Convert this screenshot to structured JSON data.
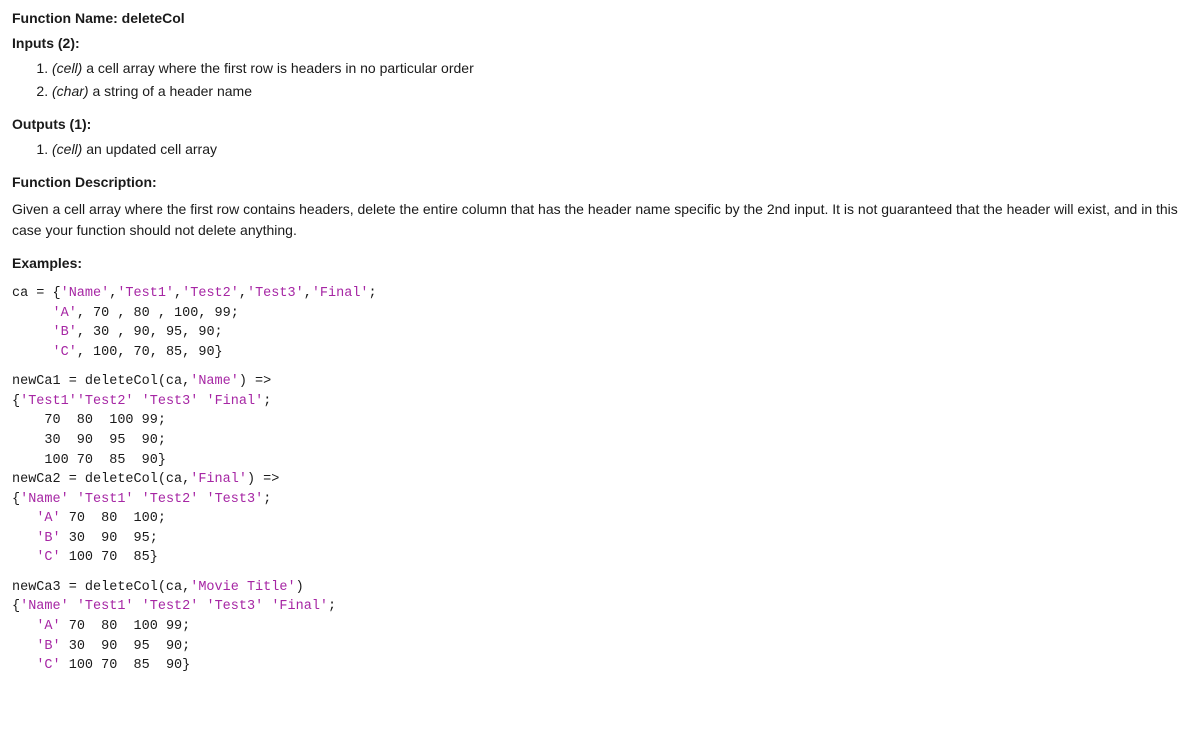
{
  "fnLabel": "Function Name: ",
  "fnName": "deleteCol",
  "inputsLabel": "Inputs (2):",
  "inputs": [
    {
      "type": "(cell)",
      "text": " a cell array where the first row is headers in no particular order"
    },
    {
      "type": "(char)",
      "text": " a string of a header name"
    }
  ],
  "outputsLabel": "Outputs (1):",
  "outputs": [
    {
      "type": "(cell)",
      "text": " an updated cell array"
    }
  ],
  "descLabel": "Function Description:",
  "desc": "Given a cell array where the first row contains headers, delete the entire column that has the header name specific by the 2nd input. It is not guaranteed that the header will exist, and in this case your function should not delete anything.",
  "examplesLabel": "Examples:",
  "code1": {
    "l1a": "ca = {",
    "l1s1": "'Name'",
    "l1b": ",",
    "l1s2": "'Test1'",
    "l1c": ",",
    "l1s3": "'Test2'",
    "l1d": ",",
    "l1s4": "'Test3'",
    "l1e": ",",
    "l1s5": "'Final'",
    "l1f": ";",
    "l2a": "     ",
    "l2s1": "'A'",
    "l2b": ", 70 , 80 , 100, 99;",
    "l3a": "     ",
    "l3s1": "'B'",
    "l3b": ", 30 , 90, 95, 90;",
    "l4a": "     ",
    "l4s1": "'C'",
    "l4b": ", 100, 70, 85, 90}"
  },
  "code2": {
    "l1a": "newCa1 = deleteCol(ca,",
    "l1s1": "'Name'",
    "l1b": ") =>",
    "l2a": "{",
    "l2s1": "'Test1'",
    "l2s2": "'Test2'",
    "l2b": " ",
    "l2s3": "'Test3'",
    "l2c": " ",
    "l2s4": "'Final'",
    "l2d": ";",
    "l3": "    70  80  100 99;",
    "l4": "    30  90  95  90;",
    "l5": "    100 70  85  90}",
    "l6a": "newCa2 = deleteCol(ca,",
    "l6s1": "'Final'",
    "l6b": ") =>",
    "l7a": "{",
    "l7s1": "'Name'",
    "l7b": " ",
    "l7s2": "'Test1'",
    "l7c": " ",
    "l7s3": "'Test2'",
    "l7d": " ",
    "l7s4": "'Test3'",
    "l7e": ";",
    "l8a": "   ",
    "l8s1": "'A'",
    "l8b": " 70  80  100;",
    "l9a": "   ",
    "l9s1": "'B'",
    "l9b": " 30  90  95;",
    "l10a": "   ",
    "l10s1": "'C'",
    "l10b": " 100 70  85}"
  },
  "code3": {
    "l1a": "newCa3 = deleteCol(ca,",
    "l1s1": "'Movie Title'",
    "l1b": ")",
    "l2a": "{",
    "l2s1": "'Name'",
    "l2b": " ",
    "l2s2": "'Test1'",
    "l2c": " ",
    "l2s3": "'Test2'",
    "l2d": " ",
    "l2s4": "'Test3'",
    "l2e": " ",
    "l2s5": "'Final'",
    "l2f": ";",
    "l3a": "   ",
    "l3s1": "'A'",
    "l3b": " 70  80  100 99;",
    "l4a": "   ",
    "l4s1": "'B'",
    "l4b": " 30  90  95  90;",
    "l5a": "   ",
    "l5s1": "'C'",
    "l5b": " 100 70  85  90}"
  },
  "colors": {
    "string": "#a626a4",
    "text": "#1a1a1a",
    "bg": "#ffffff"
  }
}
